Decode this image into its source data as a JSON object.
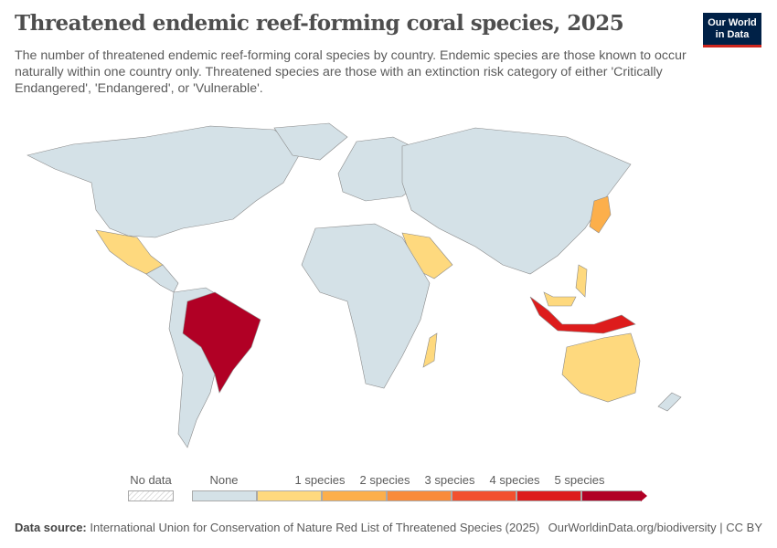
{
  "header": {
    "title": "Threatened endemic reef-forming coral species, 2025",
    "subtitle": "The number of threatened endemic reef-forming coral species by country. Endemic species are those known to occur naturally within one country only. Threatened species are those with an extinction risk category of either 'Critically Endangered', 'Endangered', or 'Vulnerable'.",
    "logo": "Our World in Data"
  },
  "colors": {
    "no_data": "#ffffff",
    "none": "#d4e1e7",
    "s1": "#fed97e",
    "s2": "#fcaf4b",
    "s3": "#f98b3a",
    "s4": "#f2502f",
    "s5": "#dd1c1c",
    "s6": "#b10025",
    "border": "#8a8a8a"
  },
  "legend": {
    "no_data": "No data",
    "none": "None",
    "labels": [
      "1 species",
      "2 species",
      "3 species",
      "4 species",
      "5 species"
    ]
  },
  "map_values": {
    "Brazil": "more than 5 species",
    "Indonesia": "5 species",
    "Japan": "2 species",
    "Mexico": "1 species",
    "Saudi Arabia": "1 species",
    "Australia": "1 species",
    "Madagascar": "1 species",
    "Philippines": "1 species",
    "Malaysia": "1 species"
  },
  "footer": {
    "source_label": "Data source:",
    "source": "International Union for Conservation of Nature Red List of Threatened Species (2025)",
    "link": "OurWorldinData.org/biodiversity | CC BY"
  }
}
